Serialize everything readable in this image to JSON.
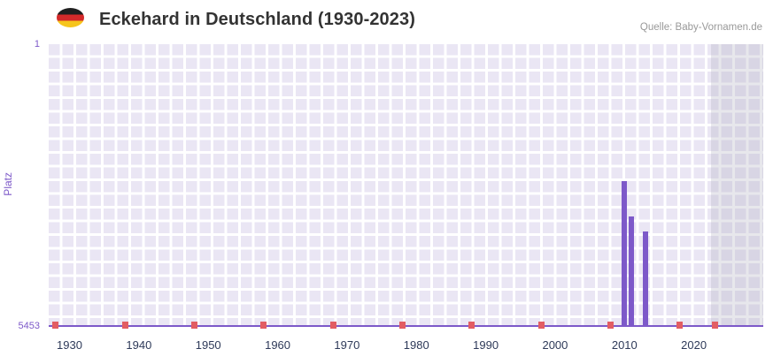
{
  "header": {
    "title": "Eckehard in Deutschland (1930-2023)",
    "source": "Quelle: Baby-Vornamen.de",
    "flag_icon": "germany-flag-icon"
  },
  "chart_data": {
    "type": "bar",
    "title": "Eckehard in Deutschland (1930-2023)",
    "ylabel": "Platz",
    "y_axis": {
      "min": 1,
      "max": 5453,
      "inverted": true,
      "tick_top": "1",
      "tick_bottom": "5453"
    },
    "x_ticks": [
      1930,
      1940,
      1950,
      1960,
      1970,
      1980,
      1990,
      2000,
      2010,
      2020
    ],
    "x_domain": [
      1927,
      2030
    ],
    "highlight_from_year": 2023,
    "grid": true,
    "legend": false,
    "series": [
      {
        "name": "Platz",
        "points": [
          {
            "year": 2010,
            "rank": 2640
          },
          {
            "year": 2011,
            "rank": 3320
          },
          {
            "year": 2013,
            "rank": 3610
          }
        ]
      }
    ],
    "unranked_years": [
      1928,
      1938,
      1948,
      1958,
      1968,
      1978,
      1988,
      1998,
      2008,
      2018,
      2023
    ],
    "colors": {
      "bar": "#7d59c9",
      "unranked_marker": "#e25d63",
      "plot_background": "#eae6f4",
      "grid_line": "#ffffff",
      "recent_band_overlay": "rgba(176,176,192,0.30)",
      "axis_line": "#7d59c9",
      "x_tick_text": "#2e3a59",
      "y_tick_text": "#7d59c9",
      "title_text": "#333333",
      "source_text": "#999999",
      "flag_black": "#1f1f1f",
      "flag_red": "#d42a2a",
      "flag_gold": "#f6c51c"
    }
  }
}
